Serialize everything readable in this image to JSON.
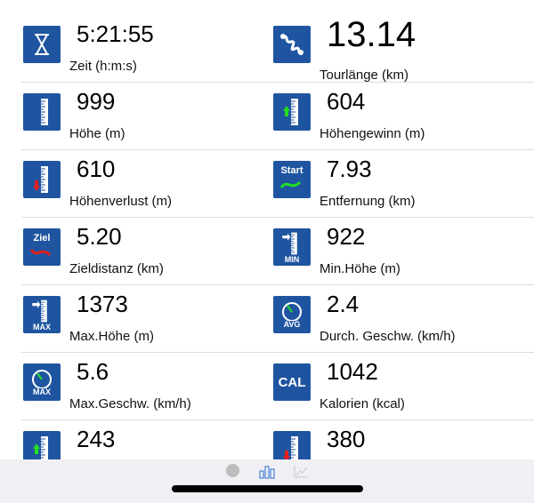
{
  "stats": [
    {
      "value": "5:21:55",
      "label": "Zeit (h:m:s)",
      "icon": "hourglass-icon"
    },
    {
      "value": "13.14",
      "label": "Tourlänge (km)",
      "icon": "route-icon"
    },
    {
      "value": "999",
      "label": "Höhe (m)",
      "icon": "altitude-ruler-icon"
    },
    {
      "value": "604",
      "label": "Höhengewinn (m)",
      "icon": "altitude-gain-icon"
    },
    {
      "value": "610",
      "label": "Höhenverlust (m)",
      "icon": "altitude-loss-icon"
    },
    {
      "value": "7.93",
      "label": "Entfernung (km)",
      "icon": "start-distance-icon",
      "badge": "Start"
    },
    {
      "value": "5.20",
      "label": "Zieldistanz (km)",
      "icon": "goal-distance-icon",
      "badge": "Ziel"
    },
    {
      "value": "922",
      "label": "Min.Höhe (m)",
      "icon": "min-altitude-icon",
      "badge": "MIN"
    },
    {
      "value": "1373",
      "label": "Max.Höhe (m)",
      "icon": "max-altitude-icon",
      "badge": "MAX"
    },
    {
      "value": "2.4",
      "label": "Durch. Geschw. (km/h)",
      "icon": "avg-speed-icon",
      "badge": "AVG"
    },
    {
      "value": "5.6",
      "label": "Max.Geschw. (km/h)",
      "icon": "max-speed-icon",
      "badge": "MAX"
    },
    {
      "value": "1042",
      "label": "Kalorien (kcal)",
      "icon": "calories-icon",
      "badge": "CAL"
    },
    {
      "value": "243",
      "label": "",
      "icon": "altitude-gain-icon"
    },
    {
      "value": "380",
      "label": "",
      "icon": "altitude-loss-icon"
    }
  ],
  "tabbar": {
    "tabs": [
      "page-dot-icon",
      "bar-chart-icon",
      "line-chart-icon"
    ],
    "active": "bar-chart-icon"
  },
  "colors": {
    "icon_bg": "#1f55a0",
    "up": "#22dd22",
    "down": "#e02020",
    "tab_active": "#2a6bd1"
  }
}
